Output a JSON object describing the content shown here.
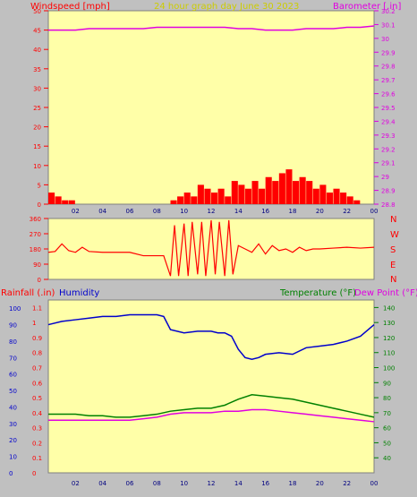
{
  "panels": {
    "wind_baro": {
      "left_label": "Windspeed [mph]",
      "center_label": "24 hour graph day   June 30 2023",
      "right_label": "Barometer [.in]",
      "left_ticks": [
        "0",
        "5",
        "10",
        "15",
        "20",
        "25",
        "30",
        "35",
        "40",
        "45",
        "50"
      ],
      "right_ticks": [
        "28.8",
        "28.9",
        "29",
        "29.1",
        "29.2",
        "29.3",
        "29.4",
        "29.5",
        "29.6",
        "29.7",
        "29.8",
        "29.9",
        "30",
        "30.1",
        "30.2"
      ],
      "x_ticks": [
        "02",
        "04",
        "06",
        "08",
        "10",
        "12",
        "14",
        "16",
        "18",
        "20",
        "22",
        "00"
      ]
    },
    "direction": {
      "left_ticks": [
        "0",
        "90",
        "180",
        "270",
        "360"
      ],
      "compass_labels": [
        "N",
        "W",
        "S",
        "E",
        "N"
      ]
    },
    "rain_temp": {
      "rain_label": "Rainfall (.in)",
      "humidity_label": "Humidity",
      "temp_label": "Temperature (°F)",
      "dew_label": "Dew Point (°F)",
      "rain_ticks": [
        "0",
        "0.1",
        "0.2",
        "0.3",
        "0.4",
        "0.5",
        "0.6",
        "0.7",
        "0.8",
        "0.9",
        "1",
        "1.1"
      ],
      "hum_ticks": [
        "0",
        "10",
        "20",
        "30",
        "40",
        "50",
        "60",
        "70",
        "80",
        "90",
        "100"
      ],
      "temp_ticks": [
        "40",
        "50",
        "60",
        "70",
        "80",
        "90",
        "100",
        "110",
        "120",
        "130",
        "140"
      ],
      "x_ticks": [
        "02",
        "04",
        "06",
        "08",
        "10",
        "12",
        "14",
        "16",
        "18",
        "20",
        "22",
        "00"
      ]
    }
  },
  "colors": {
    "plot_bg": "#ffffa8",
    "wind_gust": "#ff0000",
    "wind_avg": "#0000ff",
    "wind_low": "#00a000",
    "barometer": "#e000e0",
    "direction": "#ff0000",
    "humidity": "#0000cc",
    "temperature": "#008000",
    "dew_point": "#e000e0",
    "axis_left": "#ff0000",
    "axis_right_top": "#e000e0",
    "axis_right_bottom": "#008000",
    "header_center": "#cccc00"
  },
  "chart_data": [
    {
      "type": "line",
      "name": "windspeed_barometer",
      "x_range_hours": [
        0,
        24
      ],
      "ylim_left": [
        0,
        50
      ],
      "ylim_right": [
        28.8,
        30.2
      ],
      "series": [
        {
          "name": "Windspeed",
          "axis": "left",
          "style": "bars",
          "x": [
            0,
            0.5,
            1,
            1.5,
            2,
            3,
            4,
            5,
            6,
            7,
            8,
            9,
            9.5,
            10,
            10.5,
            11,
            11.5,
            12,
            12.5,
            13,
            13.5,
            14,
            14.5,
            15,
            15.5,
            16,
            16.5,
            17,
            17.5,
            18,
            18.5,
            19,
            19.5,
            20,
            20.5,
            21,
            21.5,
            22,
            22.5,
            23
          ],
          "y": [
            3,
            2,
            1,
            1,
            0,
            0,
            0,
            0,
            0,
            0,
            0,
            1,
            2,
            3,
            2,
            5,
            4,
            3,
            4,
            2,
            6,
            5,
            4,
            6,
            4,
            7,
            6,
            8,
            9,
            6,
            7,
            6,
            4,
            5,
            3,
            4,
            3,
            2,
            1,
            0
          ]
        },
        {
          "name": "Barometer",
          "axis": "right",
          "x": [
            0,
            1,
            2,
            3,
            4,
            5,
            6,
            7,
            8,
            9,
            10,
            11,
            12,
            13,
            14,
            15,
            16,
            17,
            18,
            19,
            20,
            21,
            22,
            23,
            24
          ],
          "y": [
            30.06,
            30.06,
            30.06,
            30.07,
            30.07,
            30.07,
            30.07,
            30.07,
            30.08,
            30.08,
            30.08,
            30.08,
            30.08,
            30.08,
            30.07,
            30.07,
            30.06,
            30.06,
            30.06,
            30.07,
            30.07,
            30.07,
            30.08,
            30.08,
            30.09
          ]
        }
      ]
    },
    {
      "type": "line",
      "name": "wind_direction",
      "x_range_hours": [
        0,
        24
      ],
      "ylim": [
        0,
        360
      ],
      "series": [
        {
          "name": "Direction",
          "x": [
            0,
            0.5,
            1,
            1.5,
            2,
            2.5,
            3,
            4,
            5,
            6,
            7,
            8,
            8.5,
            9,
            9.3,
            9.6,
            10,
            10.3,
            10.6,
            11,
            11.3,
            11.6,
            12,
            12.3,
            12.6,
            13,
            13.3,
            13.6,
            14,
            14.5,
            15,
            15.5,
            16,
            16.5,
            17,
            17.5,
            18,
            18.5,
            19,
            19.5,
            20,
            21,
            22,
            23,
            24
          ],
          "y": [
            160,
            165,
            210,
            170,
            160,
            190,
            165,
            160,
            160,
            160,
            140,
            140,
            140,
            20,
            320,
            20,
            330,
            20,
            340,
            30,
            340,
            20,
            350,
            30,
            340,
            20,
            350,
            30,
            200,
            180,
            160,
            210,
            150,
            200,
            170,
            180,
            160,
            190,
            170,
            180,
            180,
            185,
            190,
            185,
            190
          ]
        }
      ]
    },
    {
      "type": "line",
      "name": "rain_humidity_temperature",
      "x_range_hours": [
        0,
        24
      ],
      "ylim_rain": [
        0,
        1.1
      ],
      "ylim_humidity": [
        0,
        100
      ],
      "ylim_temp": [
        40,
        140
      ],
      "series": [
        {
          "name": "Humidity",
          "axis": "humidity",
          "x": [
            0,
            1,
            2,
            3,
            4,
            5,
            6,
            7,
            8,
            8.5,
            9,
            10,
            11,
            12,
            12.5,
            13,
            13.5,
            14,
            14.5,
            15,
            15.5,
            16,
            17,
            18,
            19,
            20,
            21,
            22,
            23,
            24
          ],
          "y": [
            90,
            92,
            93,
            94,
            95,
            95,
            96,
            96,
            96,
            95,
            87,
            85,
            86,
            86,
            85,
            85,
            83,
            75,
            70,
            69,
            70,
            72,
            73,
            72,
            76,
            77,
            78,
            80,
            83,
            90
          ]
        },
        {
          "name": "Temperature",
          "axis": "temp",
          "x": [
            0,
            1,
            2,
            3,
            4,
            5,
            6,
            7,
            8,
            9,
            10,
            11,
            12,
            13,
            14,
            15,
            16,
            17,
            18,
            19,
            20,
            21,
            22,
            23,
            24
          ],
          "y": [
            69,
            69,
            69,
            68,
            68,
            67,
            67,
            68,
            69,
            71,
            72,
            73,
            73,
            75,
            79,
            82,
            81,
            80,
            79,
            77,
            75,
            73,
            71,
            69,
            67
          ]
        },
        {
          "name": "Dew Point",
          "axis": "temp",
          "x": [
            0,
            1,
            2,
            3,
            4,
            5,
            6,
            7,
            8,
            9,
            10,
            11,
            12,
            13,
            14,
            15,
            16,
            17,
            18,
            19,
            20,
            21,
            22,
            23,
            24
          ],
          "y": [
            65,
            65,
            65,
            65,
            65,
            65,
            65,
            66,
            67,
            69,
            70,
            70,
            70,
            71,
            71,
            72,
            72,
            71,
            70,
            69,
            68,
            67,
            66,
            65,
            64
          ]
        },
        {
          "name": "Rainfall",
          "axis": "rain",
          "x": [],
          "y": []
        }
      ]
    }
  ]
}
